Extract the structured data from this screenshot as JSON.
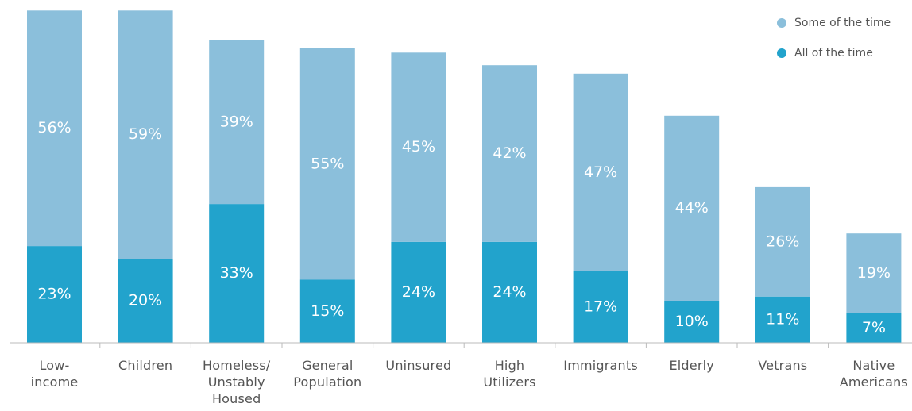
{
  "chart_data": {
    "type": "bar",
    "stacked": true,
    "title": "",
    "xlabel": "",
    "ylabel": "",
    "ylim": [
      0,
      80
    ],
    "grid": false,
    "legend_position": "top-right",
    "categories": [
      "Low-\nincome",
      "Children",
      "Homeless/\nUnstably\nHoused",
      "General\nPopulation",
      "Uninsured",
      "High\nUtilizers",
      "Immigrants",
      "Elderly",
      "Vetrans",
      "Native\nAmericans"
    ],
    "series": [
      {
        "name": "All of the time",
        "color": "#22a3cc",
        "values": [
          23,
          20,
          33,
          15,
          24,
          24,
          17,
          10,
          11,
          7
        ],
        "labels": [
          "23%",
          "20%",
          "33%",
          "15%",
          "24%",
          "24%",
          "17%",
          "10%",
          "11%",
          "7%"
        ]
      },
      {
        "name": "Some of the time",
        "color": "#8bbfdb",
        "values": [
          56,
          59,
          39,
          55,
          45,
          42,
          47,
          44,
          26,
          19
        ],
        "labels": [
          "56%",
          "59%",
          "39%",
          "55%",
          "45%",
          "42%",
          "47%",
          "44%",
          "26%",
          "19%"
        ]
      }
    ],
    "legend": [
      {
        "name": "Some of the time",
        "color": "#8bbfdb"
      },
      {
        "name": "All of the time",
        "color": "#22a3cc"
      }
    ],
    "axis_color": "#bbbbbb"
  }
}
